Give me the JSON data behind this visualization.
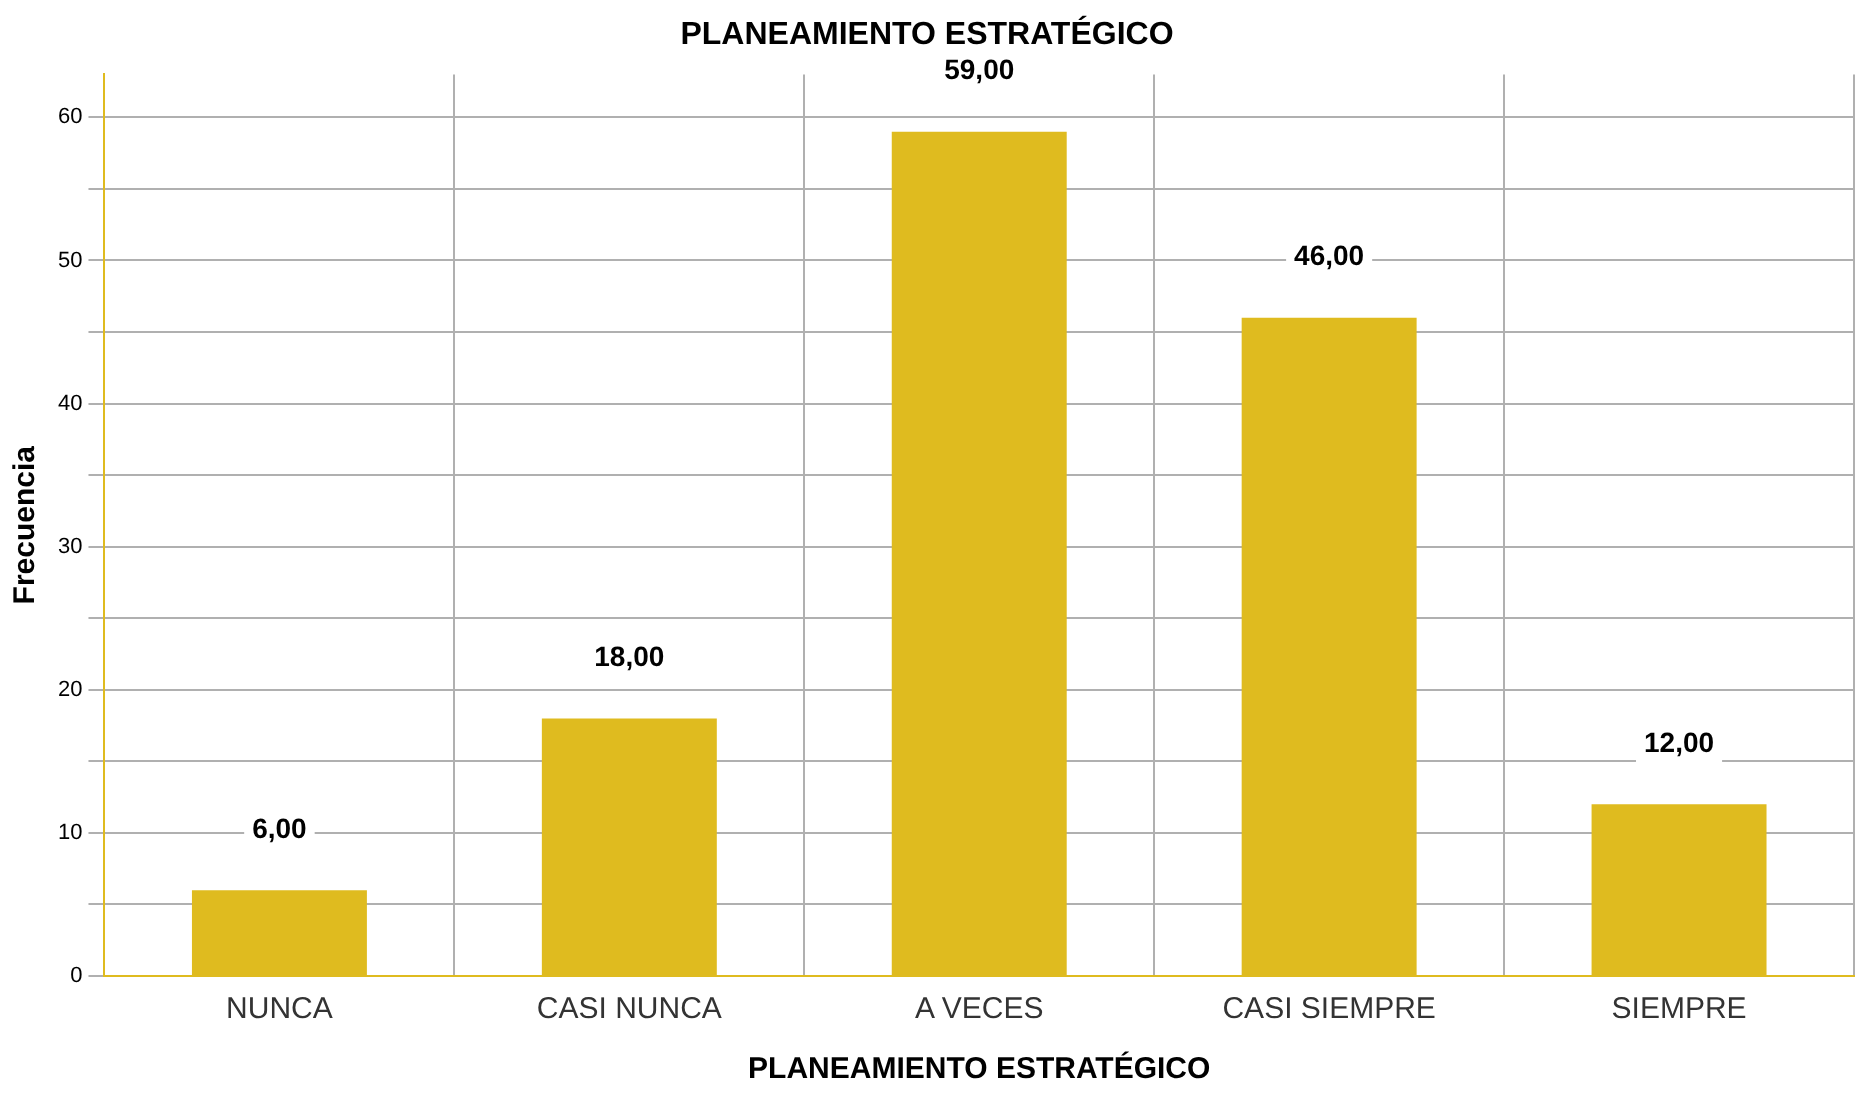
{
  "chart_data": {
    "type": "bar",
    "title": "PLANEAMIENTO ESTRATÉGICO",
    "xlabel": "PLANEAMIENTO ESTRATÉGICO",
    "ylabel": "Frecuencia",
    "categories": [
      "NUNCA",
      "CASI NUNCA",
      "A VECES",
      "CASI SIEMPRE",
      "SIEMPRE"
    ],
    "values": [
      6,
      18,
      59,
      46,
      12
    ],
    "color": "#dfbb1f",
    "ylim": [
      0,
      63
    ],
    "yticks": [
      0,
      {
        "value": 5,
        "label": null
      },
      10,
      {
        "value": 15,
        "label": null
      },
      20,
      {
        "value": 25,
        "label": null
      },
      30,
      {
        "value": 35,
        "label": null
      },
      40,
      {
        "value": 45,
        "label": null
      },
      50,
      {
        "value": 55,
        "label": null
      },
      60
    ],
    "grid": true,
    "data_labels": true,
    "value_labels": [
      "6,00",
      "18,00",
      "59,00",
      "46,00",
      "12,00"
    ]
  }
}
